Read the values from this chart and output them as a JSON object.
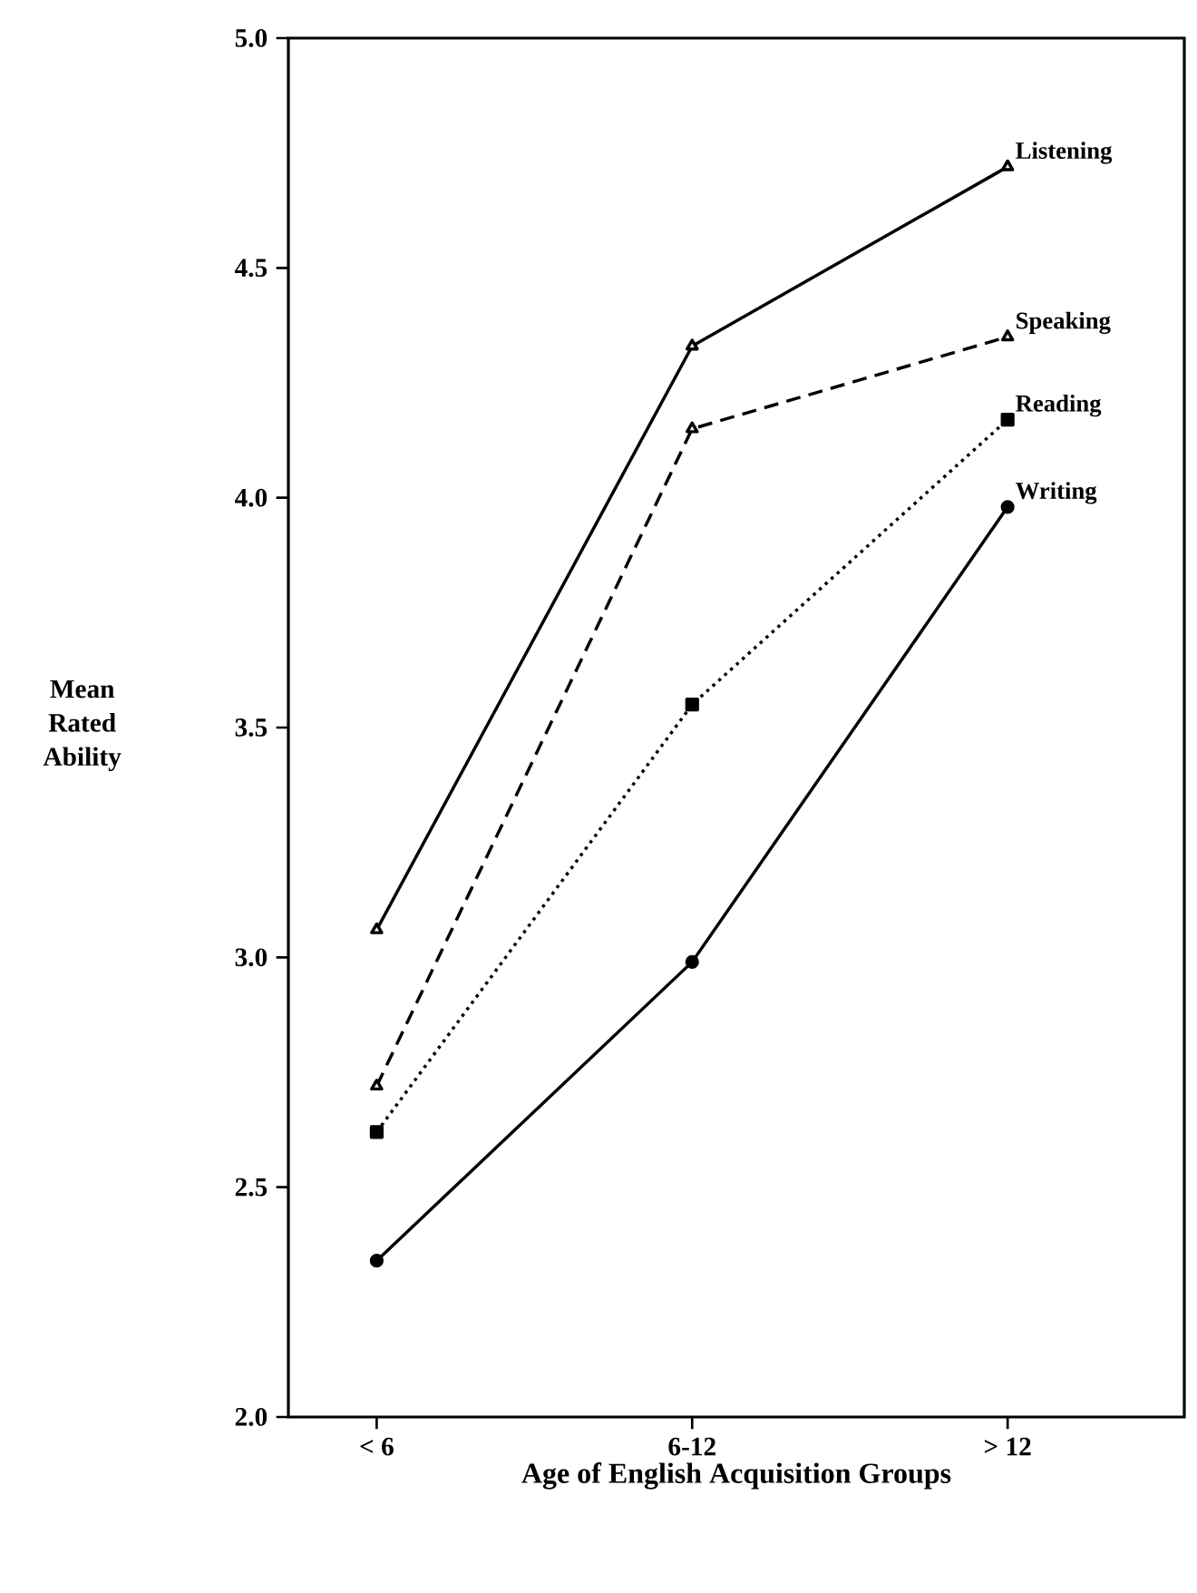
{
  "chart_data": {
    "type": "line",
    "xlabel": "Age of English Acquisition Groups",
    "ylabel": "Mean Rated Ability",
    "categories": [
      "< 6",
      "6-12",
      "> 12"
    ],
    "ylim": [
      2.0,
      5.0
    ],
    "yticks": [
      {
        "value": 2.0,
        "label": "2.0"
      },
      {
        "value": 2.5,
        "label": "2.5"
      },
      {
        "value": 3.0,
        "label": "3.0"
      },
      {
        "value": 3.5,
        "label": "3.5"
      },
      {
        "value": 4.0,
        "label": "4.0"
      },
      {
        "value": 4.5,
        "label": "4.5"
      },
      {
        "value": 5.0,
        "label": "5.0"
      }
    ],
    "series": [
      {
        "name": "Listening",
        "color": "#000000",
        "marker": "triangle",
        "line_style": "solid",
        "values": [
          3.06,
          4.33,
          4.72
        ]
      },
      {
        "name": "Speaking",
        "color": "#000000",
        "marker": "triangle",
        "line_style": "dashed",
        "values": [
          2.72,
          4.15,
          4.35
        ]
      },
      {
        "name": "Reading",
        "color": "#000000",
        "marker": "square",
        "line_style": "dotted",
        "values": [
          2.62,
          3.55,
          4.17
        ]
      },
      {
        "name": "Writing",
        "color": "#000000",
        "marker": "circle",
        "line_style": "solid",
        "values": [
          2.34,
          2.99,
          3.98
        ]
      }
    ]
  }
}
